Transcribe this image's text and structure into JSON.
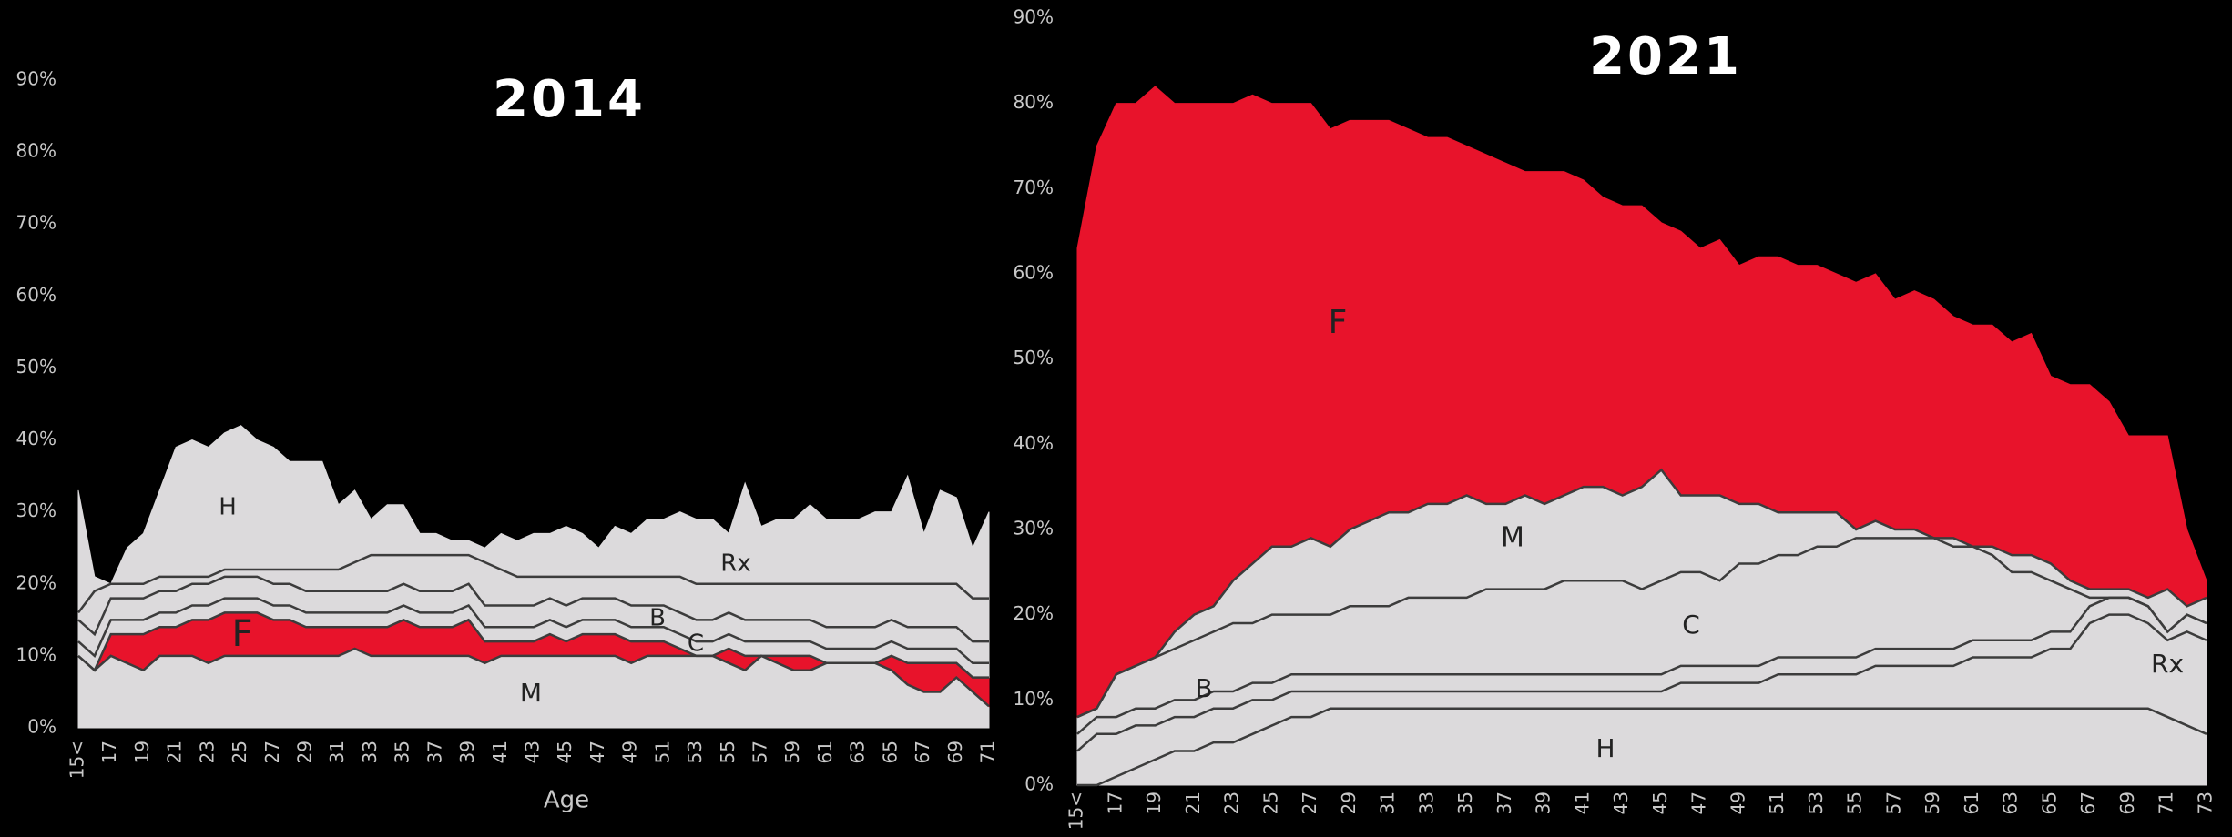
{
  "chart_data": [
    {
      "type": "stacked-area",
      "title": "2014",
      "x_label": "Age",
      "categories": [
        "15<",
        null,
        "17",
        null,
        "19",
        null,
        "21",
        null,
        "23",
        null,
        "25",
        null,
        "27",
        null,
        "29",
        null,
        "31",
        null,
        "33",
        null,
        "35",
        null,
        "37",
        null,
        "39",
        null,
        "41",
        null,
        "43",
        null,
        "45",
        null,
        "47",
        null,
        "49",
        null,
        "51",
        null,
        "53",
        null,
        "55",
        null,
        "57",
        null,
        "59",
        null,
        "61",
        null,
        "63",
        null,
        "65",
        null,
        "67",
        null,
        "69",
        null,
        "71"
      ],
      "ylim": [
        0,
        90
      ],
      "yticks": [
        {
          "value": 0,
          "label": "0%"
        },
        {
          "value": 10,
          "label": "10%"
        },
        {
          "value": 20,
          "label": "20%"
        },
        {
          "value": 30,
          "label": "30%"
        },
        {
          "value": 40,
          "label": "40%"
        },
        {
          "value": 50,
          "label": "50%"
        },
        {
          "value": 60,
          "label": "60%"
        },
        {
          "value": 70,
          "label": "70%"
        },
        {
          "value": 80,
          "label": "80%"
        },
        {
          "value": 90,
          "label": "90%"
        }
      ],
      "line_color": "#3c3c3c",
      "series": [
        {
          "name": "M",
          "color": "#dcdadc",
          "values": [
            10,
            8,
            10,
            9,
            8,
            10,
            10,
            10,
            9,
            10,
            10,
            10,
            10,
            10,
            10,
            10,
            10,
            11,
            10,
            10,
            10,
            10,
            10,
            10,
            10,
            9,
            10,
            10,
            10,
            10,
            10,
            10,
            10,
            10,
            9,
            10,
            10,
            10,
            10,
            10,
            9,
            8,
            10,
            9,
            8,
            8,
            9,
            9,
            9,
            9,
            8,
            6,
            5,
            5,
            7,
            5,
            3
          ]
        },
        {
          "name": "F",
          "color": "#e8132b",
          "values": [
            0,
            0,
            3,
            4,
            5,
            4,
            4,
            5,
            6,
            6,
            6,
            6,
            5,
            5,
            4,
            4,
            4,
            3,
            4,
            4,
            5,
            4,
            4,
            4,
            5,
            3,
            2,
            2,
            2,
            3,
            2,
            3,
            3,
            3,
            3,
            2,
            2,
            1,
            0,
            0,
            2,
            2,
            0,
            1,
            2,
            2,
            0,
            0,
            0,
            0,
            2,
            3,
            4,
            4,
            2,
            2,
            4
          ]
        },
        {
          "name": "C",
          "color": "#dcdadc",
          "values": [
            2,
            2,
            2,
            2,
            2,
            2,
            2,
            2,
            2,
            2,
            2,
            2,
            2,
            2,
            2,
            2,
            2,
            2,
            2,
            2,
            2,
            2,
            2,
            2,
            2,
            2,
            2,
            2,
            2,
            2,
            2,
            2,
            2,
            2,
            2,
            2,
            2,
            2,
            2,
            2,
            2,
            2,
            2,
            2,
            2,
            2,
            2,
            2,
            2,
            2,
            2,
            2,
            2,
            2,
            2,
            2,
            2
          ]
        },
        {
          "name": "B",
          "color": "#dcdadc",
          "values": [
            3,
            3,
            3,
            3,
            3,
            3,
            3,
            3,
            3,
            3,
            3,
            3,
            3,
            3,
            3,
            3,
            3,
            3,
            3,
            3,
            3,
            3,
            3,
            3,
            3,
            3,
            3,
            3,
            3,
            3,
            3,
            3,
            3,
            3,
            3,
            3,
            3,
            3,
            3,
            3,
            3,
            3,
            3,
            3,
            3,
            3,
            3,
            3,
            3,
            3,
            3,
            3,
            3,
            3,
            3,
            3,
            3
          ]
        },
        {
          "name": "Rx",
          "color": "#dcdadc",
          "values": [
            1,
            6,
            2,
            2,
            2,
            2,
            2,
            1,
            1,
            1,
            1,
            1,
            2,
            2,
            3,
            3,
            3,
            4,
            5,
            5,
            4,
            5,
            5,
            5,
            4,
            6,
            5,
            4,
            4,
            3,
            4,
            3,
            3,
            3,
            4,
            4,
            4,
            5,
            5,
            5,
            4,
            5,
            5,
            5,
            5,
            5,
            6,
            6,
            6,
            6,
            5,
            6,
            6,
            6,
            6,
            6,
            6
          ]
        },
        {
          "name": "H",
          "color": "#dcdadc",
          "values": [
            17,
            2,
            0,
            5,
            7,
            12,
            18,
            19,
            18,
            19,
            20,
            18,
            17,
            15,
            15,
            15,
            9,
            10,
            5,
            7,
            7,
            3,
            3,
            2,
            2,
            2,
            5,
            5,
            6,
            6,
            7,
            6,
            4,
            7,
            6,
            8,
            8,
            9,
            9,
            9,
            7,
            14,
            8,
            9,
            9,
            11,
            9,
            9,
            9,
            10,
            10,
            15,
            7,
            13,
            12,
            7,
            12
          ]
        }
      ]
    },
    {
      "type": "stacked-area",
      "title": "2021",
      "categories": [
        "15<",
        null,
        "17",
        null,
        "19",
        null,
        "21",
        null,
        "23",
        null,
        "25",
        null,
        "27",
        null,
        "29",
        null,
        "31",
        null,
        "33",
        null,
        "35",
        null,
        "37",
        null,
        "39",
        null,
        "41",
        null,
        "43",
        null,
        "45",
        null,
        "47",
        null,
        "49",
        null,
        "51",
        null,
        "53",
        null,
        "55",
        null,
        "57",
        null,
        "59",
        null,
        "61",
        null,
        "63",
        null,
        "65",
        null,
        "67",
        null,
        "69",
        null,
        "71",
        null,
        "73"
      ],
      "ylim": [
        0,
        90
      ],
      "yticks": [
        {
          "value": 0,
          "label": "0%"
        },
        {
          "value": 10,
          "label": "10%"
        },
        {
          "value": 20,
          "label": "20%"
        },
        {
          "value": 30,
          "label": "30%"
        },
        {
          "value": 40,
          "label": "40%"
        },
        {
          "value": 50,
          "label": "50%"
        },
        {
          "value": 60,
          "label": "60%"
        },
        {
          "value": 70,
          "label": "70%"
        },
        {
          "value": 80,
          "label": "80%"
        },
        {
          "value": 90,
          "label": "90%"
        }
      ],
      "line_color": "#3c3c3c",
      "series": [
        {
          "name": "H",
          "color": "#dcdadc",
          "values": [
            0,
            0,
            1,
            2,
            3,
            4,
            4,
            5,
            5,
            6,
            7,
            8,
            8,
            9,
            9,
            9,
            9,
            9,
            9,
            9,
            9,
            9,
            9,
            9,
            9,
            9,
            9,
            9,
            9,
            9,
            9,
            9,
            9,
            9,
            9,
            9,
            9,
            9,
            9,
            9,
            9,
            9,
            9,
            9,
            9,
            9,
            9,
            9,
            9,
            9,
            9,
            9,
            9,
            9,
            9,
            9,
            8,
            7,
            6
          ]
        },
        {
          "name": "Rx",
          "color": "#dcdadc",
          "values": [
            4,
            6,
            5,
            5,
            4,
            4,
            4,
            4,
            4,
            4,
            3,
            3,
            3,
            2,
            2,
            2,
            2,
            2,
            2,
            2,
            2,
            2,
            2,
            2,
            2,
            2,
            2,
            2,
            2,
            2,
            2,
            3,
            3,
            3,
            3,
            3,
            4,
            4,
            4,
            4,
            4,
            5,
            5,
            5,
            5,
            5,
            6,
            6,
            6,
            6,
            7,
            7,
            10,
            11,
            11,
            10,
            9,
            11,
            11
          ]
        },
        {
          "name": "B",
          "color": "#dcdadc",
          "values": [
            2,
            2,
            2,
            2,
            2,
            2,
            2,
            2,
            2,
            2,
            2,
            2,
            2,
            2,
            2,
            2,
            2,
            2,
            2,
            2,
            2,
            2,
            2,
            2,
            2,
            2,
            2,
            2,
            2,
            2,
            2,
            2,
            2,
            2,
            2,
            2,
            2,
            2,
            2,
            2,
            2,
            2,
            2,
            2,
            2,
            2,
            2,
            2,
            2,
            2,
            2,
            2,
            2,
            2,
            2,
            2,
            1,
            2,
            2
          ]
        },
        {
          "name": "C",
          "color": "#dcdadc",
          "values": [
            2,
            1,
            5,
            5,
            6,
            6,
            7,
            7,
            8,
            7,
            8,
            7,
            7,
            7,
            8,
            8,
            8,
            9,
            9,
            9,
            9,
            10,
            10,
            10,
            10,
            11,
            11,
            11,
            11,
            10,
            11,
            11,
            11,
            10,
            12,
            12,
            12,
            12,
            13,
            13,
            14,
            13,
            13,
            13,
            13,
            12,
            11,
            10,
            8,
            8,
            6,
            5,
            1,
            0,
            0,
            0,
            0,
            0,
            0
          ]
        },
        {
          "name": "M",
          "color": "#dcdadc",
          "values": [
            0,
            0,
            0,
            0,
            0,
            2,
            3,
            3,
            5,
            7,
            8,
            8,
            9,
            8,
            9,
            10,
            11,
            10,
            11,
            11,
            12,
            10,
            10,
            11,
            10,
            10,
            11,
            11,
            10,
            12,
            13,
            9,
            9,
            10,
            7,
            7,
            5,
            5,
            4,
            4,
            1,
            2,
            1,
            1,
            0,
            1,
            0,
            1,
            2,
            2,
            2,
            1,
            1,
            1,
            1,
            1,
            5,
            1,
            3
          ]
        },
        {
          "name": "F",
          "color": "#e8132b",
          "values": [
            55,
            66,
            67,
            66,
            67,
            62,
            60,
            59,
            56,
            55,
            52,
            52,
            51,
            49,
            48,
            47,
            46,
            45,
            43,
            43,
            41,
            41,
            40,
            38,
            39,
            38,
            36,
            34,
            34,
            33,
            29,
            31,
            29,
            30,
            28,
            29,
            30,
            29,
            29,
            28,
            29,
            29,
            27,
            28,
            28,
            26,
            26,
            26,
            25,
            26,
            22,
            23,
            24,
            22,
            18,
            19,
            18,
            9,
            2
          ]
        }
      ]
    }
  ]
}
